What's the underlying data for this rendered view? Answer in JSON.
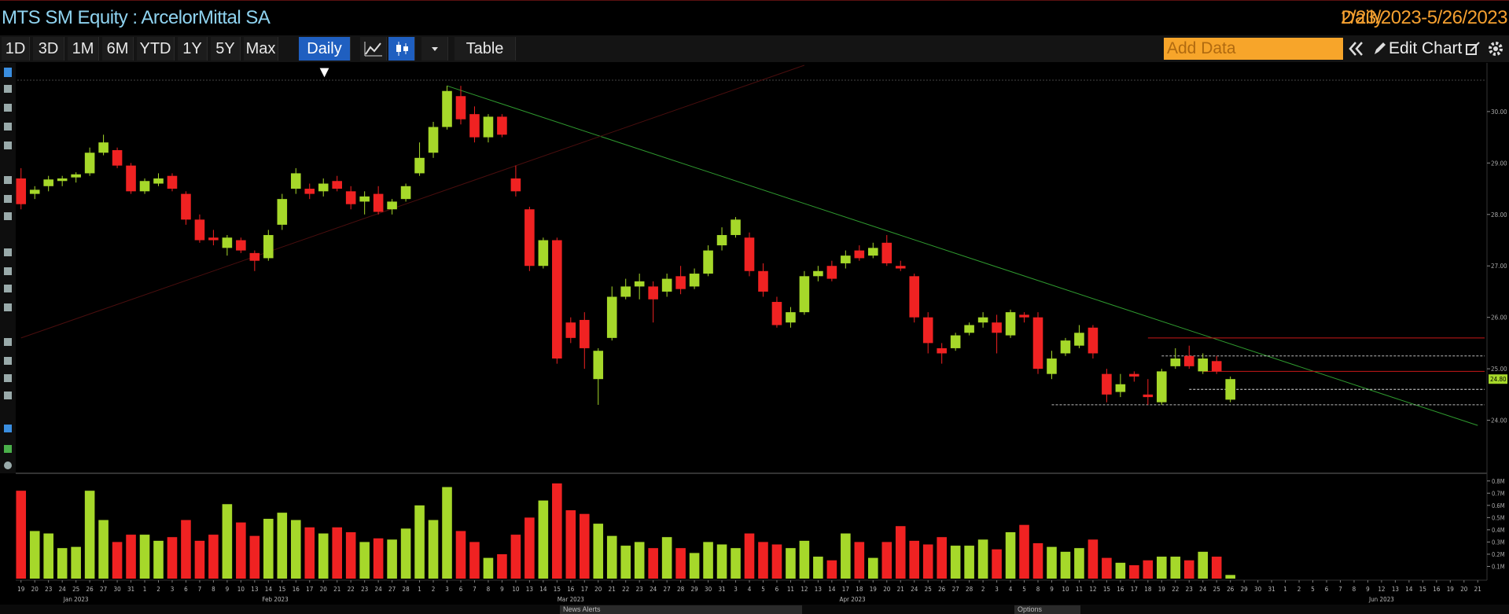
{
  "header": {
    "title": "MTS SM Equity : ArcelorMittal SA",
    "period": "Daily",
    "range": "2/23/2023-5/26/2023"
  },
  "toolbar": {
    "buttons": [
      "1D",
      "3D",
      "1M",
      "6M",
      "YTD",
      "1Y",
      "5Y",
      "Max"
    ],
    "frequency": "Daily ▼",
    "table": "Table",
    "add_data": "Add Data",
    "edit_chart": "Edit Chart"
  },
  "footer": {
    "news": "News Alerts",
    "options": "Options"
  },
  "chart_data": {
    "type": "candlestick",
    "up_color": "#a6d82a",
    "down_color": "#f02222",
    "categories": [
      "19",
      "20",
      "23",
      "24",
      "25",
      "26",
      "27",
      "30",
      "31",
      "1",
      "2",
      "3",
      "6",
      "7",
      "8",
      "9",
      "10",
      "13",
      "14",
      "15",
      "16",
      "17",
      "20",
      "21",
      "22",
      "23",
      "24",
      "27",
      "28",
      "1",
      "2",
      "3",
      "6",
      "7",
      "8",
      "9",
      "10",
      "13",
      "14",
      "15",
      "16",
      "17",
      "20",
      "21",
      "22",
      "23",
      "24",
      "27",
      "28",
      "29",
      "30",
      "31",
      "3",
      "4",
      "5",
      "6",
      "11",
      "12",
      "13",
      "14",
      "17",
      "18",
      "19",
      "20",
      "21",
      "24",
      "25",
      "26",
      "27",
      "28",
      "2",
      "3",
      "4",
      "5",
      "8",
      "9",
      "10",
      "11",
      "12",
      "15",
      "16",
      "17",
      "18",
      "19",
      "22",
      "23",
      "24",
      "25",
      "26",
      "29",
      "30",
      "31",
      "1",
      "2",
      "5",
      "6",
      "7",
      "8",
      "9",
      "12",
      "13",
      "14",
      "15",
      "16",
      "19",
      "20",
      "21"
    ],
    "months": [
      "Jan 2023",
      "Jan 2023",
      "Jan 2023",
      "Jan 2023",
      "Jan 2023",
      "Jan 2023",
      "Jan 2023",
      "Jan 2023",
      "Jan 2023",
      "Feb 2023",
      "Feb 2023",
      "Feb 2023",
      "Feb 2023",
      "Feb 2023",
      "Feb 2023",
      "Feb 2023",
      "Feb 2023",
      "Feb 2023",
      "Feb 2023",
      "Feb 2023",
      "Feb 2023",
      "Feb 2023",
      "Feb 2023",
      "Feb 2023",
      "Feb 2023",
      "Feb 2023",
      "Feb 2023",
      "Feb 2023",
      "Feb 2023",
      "Mar 2023",
      "Mar 2023",
      "Mar 2023",
      "Mar 2023",
      "Mar 2023",
      "Mar 2023",
      "Mar 2023",
      "Mar 2023",
      "Mar 2023",
      "Mar 2023",
      "Mar 2023",
      "Mar 2023",
      "Mar 2023",
      "Mar 2023",
      "Mar 2023",
      "Mar 2023",
      "Mar 2023",
      "Mar 2023",
      "Mar 2023",
      "Mar 2023",
      "Mar 2023",
      "Mar 2023",
      "Mar 2023",
      "Apr 2023",
      "Apr 2023",
      "Apr 2023",
      "Apr 2023",
      "Apr 2023",
      "Apr 2023",
      "Apr 2023",
      "Apr 2023",
      "Apr 2023",
      "Apr 2023",
      "Apr 2023",
      "Apr 2023",
      "Apr 2023",
      "Apr 2023",
      "Apr 2023",
      "Apr 2023",
      "Apr 2023",
      "Apr 2023",
      null,
      null,
      null,
      null,
      null,
      null,
      null,
      null,
      null,
      null,
      null,
      null,
      null,
      null,
      null,
      null,
      null,
      null,
      null,
      null,
      null,
      null,
      "Jun 2023",
      "Jun 2023",
      "Jun 2023",
      "Jun 2023",
      "Jun 2023",
      "Jun 2023",
      "Jun 2023",
      "Jun 2023",
      "Jun 2023",
      "Jun 2023",
      "Jun 2023",
      "Jun 2023",
      "Jun 2023",
      "Jun 2023",
      "Jun 2023"
    ],
    "candles": [
      [
        28.7,
        28.9,
        28.1,
        28.2
      ],
      [
        28.4,
        28.55,
        28.3,
        28.48
      ],
      [
        28.55,
        28.75,
        28.45,
        28.68
      ],
      [
        28.65,
        28.75,
        28.55,
        28.7
      ],
      [
        28.72,
        28.82,
        28.62,
        28.78
      ],
      [
        28.8,
        29.3,
        28.75,
        29.2
      ],
      [
        29.2,
        29.55,
        29.15,
        29.4
      ],
      [
        29.25,
        29.3,
        28.9,
        28.95
      ],
      [
        28.95,
        29.0,
        28.4,
        28.45
      ],
      [
        28.45,
        28.7,
        28.4,
        28.65
      ],
      [
        28.6,
        28.8,
        28.55,
        28.7
      ],
      [
        28.75,
        28.8,
        28.45,
        28.5
      ],
      [
        28.4,
        28.45,
        27.8,
        27.9
      ],
      [
        27.9,
        28.0,
        27.45,
        27.5
      ],
      [
        27.55,
        27.7,
        27.4,
        27.5
      ],
      [
        27.35,
        27.6,
        27.2,
        27.55
      ],
      [
        27.5,
        27.55,
        27.25,
        27.3
      ],
      [
        27.25,
        27.3,
        26.9,
        27.1
      ],
      [
        27.15,
        27.7,
        27.1,
        27.6
      ],
      [
        27.8,
        28.4,
        27.7,
        28.3
      ],
      [
        28.5,
        28.9,
        28.4,
        28.8
      ],
      [
        28.5,
        28.6,
        28.3,
        28.4
      ],
      [
        28.45,
        28.7,
        28.35,
        28.6
      ],
      [
        28.65,
        28.75,
        28.45,
        28.5
      ],
      [
        28.45,
        28.55,
        28.1,
        28.2
      ],
      [
        28.25,
        28.45,
        28.0,
        28.35
      ],
      [
        28.4,
        28.55,
        28.0,
        28.05
      ],
      [
        28.1,
        28.3,
        28.0,
        28.25
      ],
      [
        28.3,
        28.6,
        28.25,
        28.55
      ],
      [
        28.8,
        29.4,
        28.75,
        29.1
      ],
      [
        29.2,
        29.8,
        29.1,
        29.7
      ],
      [
        29.7,
        30.5,
        29.65,
        30.4
      ],
      [
        30.3,
        30.5,
        29.75,
        29.85
      ],
      [
        29.95,
        30.1,
        29.4,
        29.5
      ],
      [
        29.5,
        29.95,
        29.4,
        29.9
      ],
      [
        29.9,
        29.95,
        29.5,
        29.55
      ],
      [
        28.7,
        28.95,
        28.35,
        28.45
      ],
      [
        28.1,
        28.15,
        26.9,
        27.0
      ],
      [
        27.0,
        27.55,
        26.95,
        27.5
      ],
      [
        27.5,
        27.55,
        25.1,
        25.2
      ],
      [
        25.9,
        26.0,
        25.5,
        25.6
      ],
      [
        25.95,
        26.1,
        25.0,
        25.4
      ],
      [
        24.8,
        25.4,
        24.3,
        25.35
      ],
      [
        25.6,
        26.6,
        25.55,
        26.4
      ],
      [
        26.4,
        26.75,
        26.35,
        26.6
      ],
      [
        26.6,
        26.85,
        26.35,
        26.7
      ],
      [
        26.6,
        26.7,
        25.9,
        26.35
      ],
      [
        26.5,
        26.85,
        26.4,
        26.75
      ],
      [
        26.8,
        27.0,
        26.45,
        26.55
      ],
      [
        26.6,
        26.95,
        26.55,
        26.85
      ],
      [
        26.85,
        27.4,
        26.8,
        27.3
      ],
      [
        27.4,
        27.75,
        27.3,
        27.6
      ],
      [
        27.6,
        27.95,
        27.55,
        27.9
      ],
      [
        27.55,
        27.65,
        26.8,
        26.9
      ],
      [
        26.9,
        27.05,
        26.4,
        26.5
      ],
      [
        26.3,
        26.4,
        25.8,
        25.85
      ],
      [
        25.9,
        26.2,
        25.8,
        26.1
      ],
      [
        26.1,
        26.9,
        26.05,
        26.8
      ],
      [
        26.8,
        27.0,
        26.7,
        26.9
      ],
      [
        27.0,
        27.1,
        26.7,
        26.75
      ],
      [
        27.05,
        27.3,
        26.95,
        27.2
      ],
      [
        27.3,
        27.4,
        27.1,
        27.15
      ],
      [
        27.2,
        27.45,
        27.15,
        27.35
      ],
      [
        27.45,
        27.6,
        27.0,
        27.05
      ],
      [
        27.0,
        27.1,
        26.9,
        26.95
      ],
      [
        26.8,
        26.85,
        25.9,
        26.0
      ],
      [
        26.0,
        26.1,
        25.3,
        25.5
      ],
      [
        25.4,
        25.5,
        25.1,
        25.3
      ],
      [
        25.4,
        25.7,
        25.35,
        25.65
      ],
      [
        25.7,
        25.9,
        25.65,
        25.85
      ],
      [
        25.9,
        26.1,
        25.8,
        26.0
      ],
      [
        25.9,
        26.05,
        25.3,
        25.7
      ],
      [
        25.65,
        26.15,
        25.6,
        26.1
      ],
      [
        26.05,
        26.1,
        25.9,
        26.0
      ],
      [
        26.0,
        26.1,
        24.9,
        25.0
      ],
      [
        24.9,
        25.35,
        24.8,
        25.2
      ],
      [
        25.3,
        25.6,
        25.25,
        25.55
      ],
      [
        25.45,
        25.85,
        25.4,
        25.7
      ],
      [
        25.8,
        25.85,
        25.2,
        25.3
      ],
      [
        24.9,
        25.0,
        24.35,
        24.5
      ],
      [
        24.55,
        24.9,
        24.45,
        24.7
      ],
      [
        24.9,
        24.95,
        24.75,
        24.85
      ],
      [
        24.5,
        24.8,
        24.3,
        24.45
      ],
      [
        24.35,
        25.0,
        24.3,
        24.95
      ],
      [
        25.05,
        25.4,
        25.0,
        25.2
      ],
      [
        25.25,
        25.45,
        25.0,
        25.05
      ],
      [
        24.95,
        25.3,
        24.9,
        25.2
      ],
      [
        25.15,
        25.25,
        24.9,
        24.95
      ],
      [
        24.4,
        24.85,
        24.35,
        24.8
      ],
      null,
      null,
      null,
      null,
      null,
      null,
      null,
      null,
      null,
      null,
      null,
      null,
      null,
      null,
      null,
      null,
      null,
      null
    ],
    "volume": [
      0.72,
      0.39,
      0.37,
      0.25,
      0.26,
      0.72,
      0.48,
      0.3,
      0.36,
      0.36,
      0.31,
      0.34,
      0.48,
      0.31,
      0.36,
      0.61,
      0.46,
      0.35,
      0.49,
      0.54,
      0.48,
      0.42,
      0.37,
      0.42,
      0.38,
      0.3,
      0.33,
      0.32,
      0.41,
      0.6,
      0.48,
      0.75,
      0.39,
      0.3,
      0.17,
      0.2,
      0.36,
      0.5,
      0.64,
      0.78,
      0.56,
      0.53,
      0.45,
      0.35,
      0.27,
      0.3,
      0.25,
      0.34,
      0.25,
      0.21,
      0.3,
      0.28,
      0.25,
      0.37,
      0.3,
      0.28,
      0.25,
      0.31,
      0.18,
      0.15,
      0.37,
      0.3,
      0.17,
      0.3,
      0.43,
      0.31,
      0.28,
      0.34,
      0.27,
      0.27,
      0.32,
      0.24,
      0.38,
      0.44,
      0.29,
      0.26,
      0.22,
      0.25,
      0.32,
      0.17,
      0.13,
      0.11,
      0.15,
      0.18,
      0.18,
      0.15,
      0.22,
      0.18,
      0.03,
      null,
      null,
      null,
      null,
      null,
      null,
      null,
      null,
      null,
      null,
      null,
      null,
      null,
      null,
      null,
      null,
      null,
      null
    ],
    "ylim": [
      23.0,
      30.9
    ],
    "yticks": [
      {
        "value": 24,
        "label": "24.00"
      },
      {
        "value": 25,
        "label": "25.00"
      },
      {
        "value": 26,
        "label": "26.00"
      },
      {
        "value": 27,
        "label": "27.00"
      },
      {
        "value": 28,
        "label": "28.00"
      },
      {
        "value": 29,
        "label": "29.00"
      },
      {
        "value": 30,
        "label": "30.00"
      }
    ],
    "y2lim": [
      0,
      0.85
    ],
    "y2ticks": [
      {
        "value": 0.1,
        "label": "0.1M"
      },
      {
        "value": 0.2,
        "label": "0.2M"
      },
      {
        "value": 0.3,
        "label": "0.3M"
      },
      {
        "value": 0.4,
        "label": "0.4M"
      },
      {
        "value": 0.5,
        "label": "0.5M"
      },
      {
        "value": 0.6,
        "label": "0.6M"
      },
      {
        "value": 0.7,
        "label": "0.7M"
      },
      {
        "value": 0.8,
        "label": "0.8M"
      }
    ],
    "last_price": {
      "value": 24.8,
      "label": "24.80"
    },
    "trendlines": [
      {
        "color": "#2f9a2f",
        "from": [
          31,
          30.5
        ],
        "to": [
          106,
          23.9
        ]
      },
      {
        "color": "#4a0e0e",
        "from": [
          0,
          25.6
        ],
        "to": [
          57,
          30.9
        ]
      }
    ],
    "levels": [
      {
        "value": 25.6,
        "from": 82,
        "color": "#c81818"
      },
      {
        "value": 24.95,
        "from": 86,
        "color": "#c81818"
      },
      {
        "value": 25.25,
        "from": 83,
        "color": "#bbbbbb"
      },
      {
        "value": 24.6,
        "from": 85,
        "color": "#dddddd"
      },
      {
        "value": 24.3,
        "from": 75,
        "color": "#bbbbbb"
      }
    ]
  }
}
